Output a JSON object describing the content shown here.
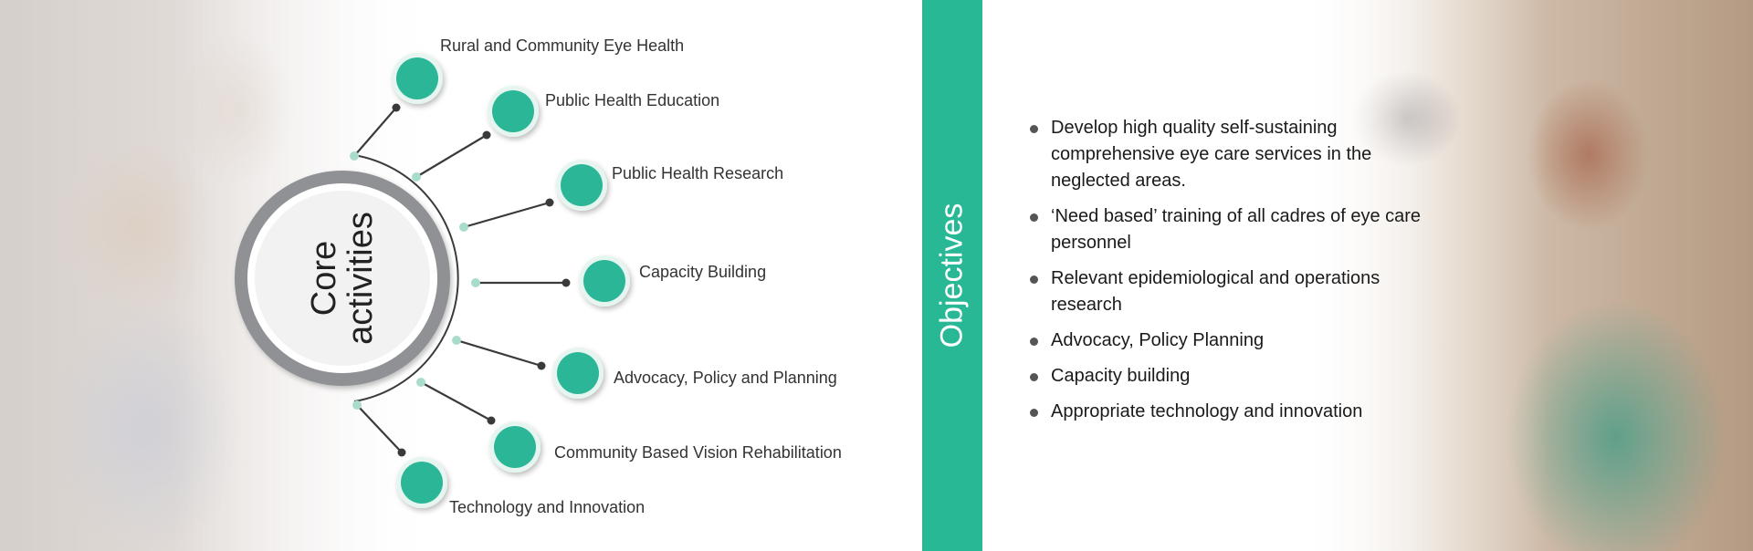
{
  "core": {
    "title": "Core\nactivities",
    "items": [
      "Rural and Community Eye Health",
      "Public Health Education",
      "Public Health  Research",
      "Capacity Building",
      "Advocacy, Policy and Planning",
      "Community Based Vision Rehabilitation",
      "Technology and Innovation"
    ]
  },
  "objectives": {
    "title": "Objectives",
    "items": [
      "Develop high quality self-sustaining comprehensive eye care services in the neglected areas.",
      "‘Need based’ training of all cadres of eye care personnel",
      "Relevant epidemiological and operations research",
      "Advocacy, Policy Planning",
      "Capacity building",
      "Appropriate technology and innovation"
    ]
  },
  "colors": {
    "accent": "#28b896",
    "node_fill": "#2bb797",
    "ring": "#8f9195",
    "connector": "#3a3a3a",
    "joint": "#a9dccd"
  }
}
